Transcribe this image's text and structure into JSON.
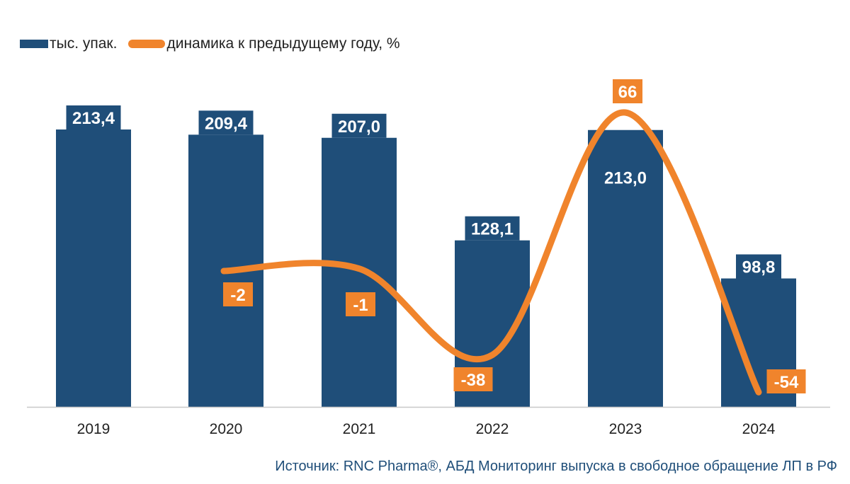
{
  "legend": {
    "bars_label": "тыс. упак.",
    "line_label": "динамика к предыдущему году, %"
  },
  "source": "Источник: RNC Pharma®, АБД Мониторинг выпуска в свободное обращение ЛП в РФ",
  "colors": {
    "bar": "#1f4e79",
    "line": "#f0842c",
    "axis": "#c8c8c8",
    "text": "#222222"
  },
  "chart_data": {
    "type": "bar",
    "categories": [
      "2019",
      "2020",
      "2021",
      "2022",
      "2023",
      "2024"
    ],
    "series": [
      {
        "name": "тыс. упак.",
        "type": "bar",
        "values": [
          213.4,
          209.4,
          207.0,
          128.1,
          213.0,
          98.8
        ],
        "labels": [
          "213,4",
          "209,4",
          "207,0",
          "128,1",
          "213,0",
          "98,8"
        ]
      },
      {
        "name": "динамика к предыдущему году, %",
        "type": "line",
        "values": [
          null,
          -2,
          -1,
          -38,
          66,
          -54
        ],
        "labels": [
          "",
          "-2",
          "-1",
          "-38",
          "66",
          "-54"
        ]
      }
    ],
    "title": "",
    "xlabel": "",
    "ylabel": ""
  }
}
